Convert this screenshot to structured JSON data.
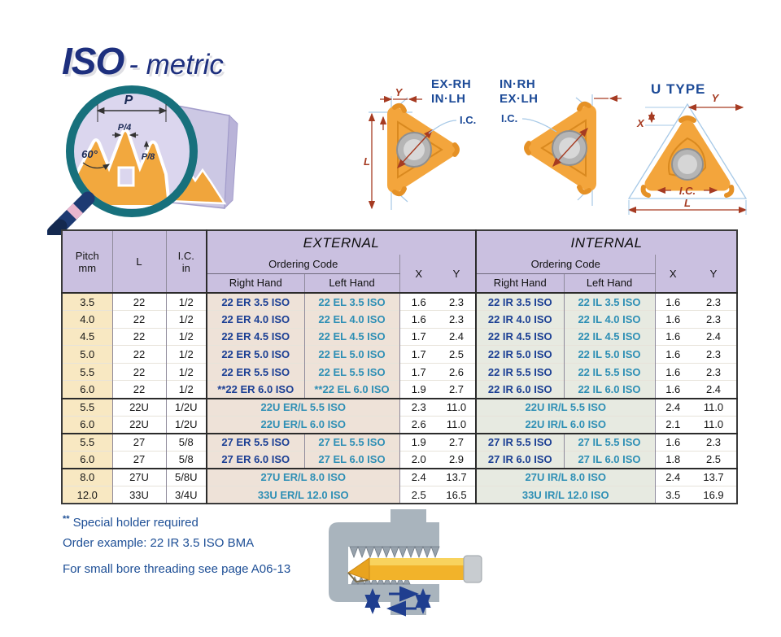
{
  "title": {
    "brand": "ISO",
    "suffix": "- metric"
  },
  "diagrams": {
    "insert_left_label_line1": "EX-RH",
    "insert_left_label_line2": "IN·LH",
    "insert_right_label_line1": "IN·RH",
    "insert_right_label_line2": "EX·LH",
    "u_type_label": "U TYPE",
    "dim_L": "L",
    "dim_X": "X",
    "dim_Y": "Y",
    "dim_IC": "I.C.",
    "magnifier": {
      "p": "P",
      "p4": "P/4",
      "angle": "60°",
      "p8": "P/8"
    }
  },
  "table": {
    "headers": {
      "pitch": "Pitch",
      "pitch_unit": "mm",
      "l": "L",
      "ic": "I.C.",
      "ic_unit": "in",
      "external": "EXTERNAL",
      "internal": "INTERNAL",
      "ordering_code": "Ordering Code",
      "right_hand": "Right Hand",
      "left_hand": "Left Hand",
      "x": "X",
      "y": "Y"
    },
    "rows": [
      {
        "pitch": "3.5",
        "l": "22",
        "ic": "1/2",
        "ext_rh": "22 ER 3.5 ISO",
        "ext_lh": "22 EL 3.5 ISO",
        "ext_x": "1.6",
        "ext_y": "2.3",
        "int_rh": "22 IR 3.5 ISO",
        "int_lh": "22 IL 3.5 ISO",
        "int_x": "1.6",
        "int_y": "2.3",
        "span": false,
        "group_start": false
      },
      {
        "pitch": "4.0",
        "l": "22",
        "ic": "1/2",
        "ext_rh": "22 ER 4.0 ISO",
        "ext_lh": "22 EL 4.0 ISO",
        "ext_x": "1.6",
        "ext_y": "2.3",
        "int_rh": "22 IR 4.0 ISO",
        "int_lh": "22 IL 4.0 ISO",
        "int_x": "1.6",
        "int_y": "2.3",
        "span": false,
        "group_start": false
      },
      {
        "pitch": "4.5",
        "l": "22",
        "ic": "1/2",
        "ext_rh": "22 ER 4.5 ISO",
        "ext_lh": "22 EL 4.5 ISO",
        "ext_x": "1.7",
        "ext_y": "2.4",
        "int_rh": "22 IR 4.5 ISO",
        "int_lh": "22 IL 4.5 ISO",
        "int_x": "1.6",
        "int_y": "2.4",
        "span": false,
        "group_start": false
      },
      {
        "pitch": "5.0",
        "l": "22",
        "ic": "1/2",
        "ext_rh": "22 ER 5.0 ISO",
        "ext_lh": "22 EL 5.0 ISO",
        "ext_x": "1.7",
        "ext_y": "2.5",
        "int_rh": "22 IR 5.0 ISO",
        "int_lh": "22 IL 5.0 ISO",
        "int_x": "1.6",
        "int_y": "2.3",
        "span": false,
        "group_start": false
      },
      {
        "pitch": "5.5",
        "l": "22",
        "ic": "1/2",
        "ext_rh": "22 ER 5.5 ISO",
        "ext_lh": "22 EL 5.5 ISO",
        "ext_x": "1.7",
        "ext_y": "2.6",
        "int_rh": "22 IR 5.5 ISO",
        "int_lh": "22 IL 5.5 ISO",
        "int_x": "1.6",
        "int_y": "2.3",
        "span": false,
        "group_start": false
      },
      {
        "pitch": "6.0",
        "l": "22",
        "ic": "1/2",
        "ext_rh": "**22 ER 6.0 ISO",
        "ext_lh": "**22 EL 6.0 ISO",
        "ext_x": "1.9",
        "ext_y": "2.7",
        "int_rh": "22 IR 6.0 ISO",
        "int_lh": "22 IL 6.0 ISO",
        "int_x": "1.6",
        "int_y": "2.4",
        "span": false,
        "group_start": false
      },
      {
        "pitch": "5.5",
        "l": "22U",
        "ic": "1/2U",
        "ext_code": "22U ER/L 5.5 ISO",
        "ext_x": "2.3",
        "ext_y": "11.0",
        "int_code": "22U IR/L 5.5 ISO",
        "int_x": "2.4",
        "int_y": "11.0",
        "span": true,
        "group_start": true
      },
      {
        "pitch": "6.0",
        "l": "22U",
        "ic": "1/2U",
        "ext_code": "22U ER/L 6.0 ISO",
        "ext_x": "2.6",
        "ext_y": "11.0",
        "int_code": "22U IR/L 6.0 ISO",
        "int_x": "2.1",
        "int_y": "11.0",
        "span": true,
        "group_start": false
      },
      {
        "pitch": "5.5",
        "l": "27",
        "ic": "5/8",
        "ext_rh": "27 ER 5.5 ISO",
        "ext_lh": "27 EL 5.5 ISO",
        "ext_x": "1.9",
        "ext_y": "2.7",
        "int_rh": "27 IR 5.5 ISO",
        "int_lh": "27 IL 5.5 ISO",
        "int_x": "1.6",
        "int_y": "2.3",
        "span": false,
        "group_start": true
      },
      {
        "pitch": "6.0",
        "l": "27",
        "ic": "5/8",
        "ext_rh": "27 ER 6.0 ISO",
        "ext_lh": "27 EL 6.0 ISO",
        "ext_x": "2.0",
        "ext_y": "2.9",
        "int_rh": "27 IR 6.0 ISO",
        "int_lh": "27 IL 6.0 ISO",
        "int_x": "1.8",
        "int_y": "2.5",
        "span": false,
        "group_start": false
      },
      {
        "pitch": "8.0",
        "l": "27U",
        "ic": "5/8U",
        "ext_code": "27U ER/L 8.0 ISO",
        "ext_x": "2.4",
        "ext_y": "13.7",
        "int_code": "27U IR/L 8.0 ISO",
        "int_x": "2.4",
        "int_y": "13.7",
        "span": true,
        "group_start": true
      },
      {
        "pitch": "12.0",
        "l": "33U",
        "ic": "3/4U",
        "ext_code": "33U ER/L 12.0 ISO",
        "ext_x": "2.5",
        "ext_y": "16.5",
        "int_code": "33U IR/L 12.0 ISO",
        "int_x": "3.5",
        "int_y": "16.9",
        "span": true,
        "group_start": false
      }
    ]
  },
  "notes": {
    "special_marker": "**",
    "special": "Special holder required",
    "order_example": "Order example: 22 IR 3.5 ISO BMA",
    "small_bore": "For small bore threading see page A06-13"
  },
  "colors": {
    "title_navy": "#1d2f7e",
    "diagram_navy": "#1c4a97",
    "navy_code": "#1b3f94",
    "teal_code": "#2e8fb5",
    "header_bg": "#cac0e0",
    "pitch_bg": "#f8e8c2",
    "ext_bg": "#eee2d8",
    "int_bg": "#e7eae1",
    "note_blue": "#1e4f96",
    "dim_rust": "#a63b22",
    "dim_blue": "#a7c9e7",
    "insert_orange": "#f3a53c",
    "steel_gray": "#a9b4bd"
  }
}
